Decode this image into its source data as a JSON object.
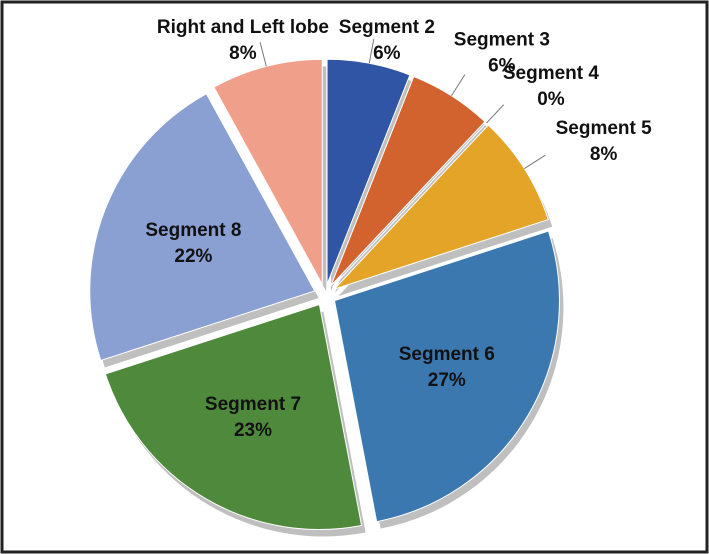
{
  "chart_data": {
    "type": "pie",
    "categories": [
      "Segment 2",
      "Segment 3",
      "Segment 4",
      "Segment 5",
      "Segment 6",
      "Segment 7",
      "Segment 8",
      "Right and Left lobe"
    ],
    "values": [
      6,
      6,
      0,
      8,
      27,
      23,
      22,
      8
    ],
    "value_labels": [
      "6%",
      "6%",
      "0%",
      "8%",
      "27%",
      "23%",
      "22%",
      "8%"
    ],
    "colors": [
      "#2f55a4",
      "#d2622e",
      "#a5a5a5",
      "#e3a427",
      "#3b78b0",
      "#4f8a3c",
      "#8a9fd2",
      "#f0a08a"
    ]
  }
}
